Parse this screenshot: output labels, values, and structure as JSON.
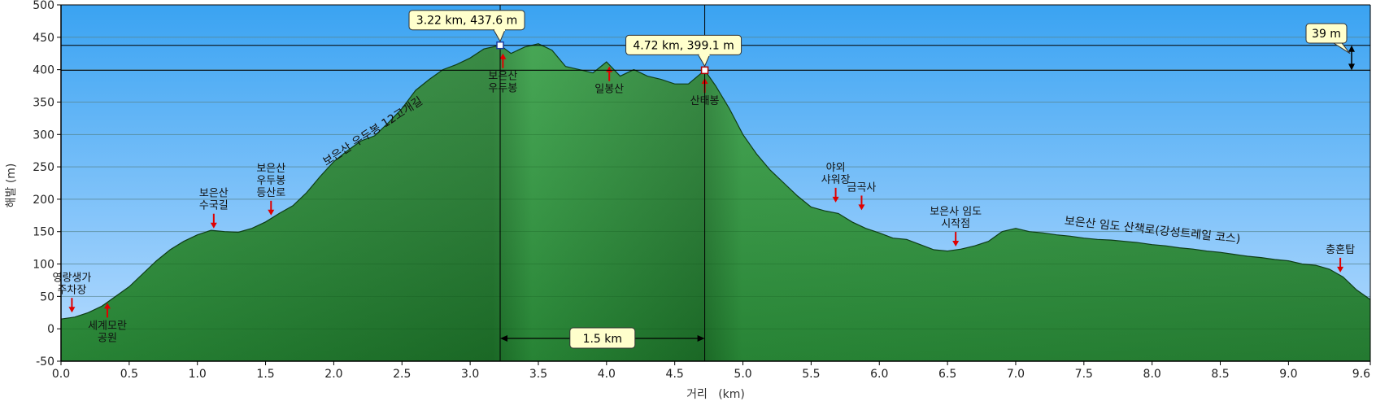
{
  "chart_data": {
    "type": "area",
    "xlabel": "거리   (km)",
    "ylabel": "해발 (m)",
    "xlim": [
      0,
      9.6
    ],
    "ylim": [
      -50,
      500
    ],
    "x_ticks": [
      "0.0",
      "0.5",
      "1.0",
      "1.5",
      "2.0",
      "2.5",
      "3.0",
      "3.5",
      "4.0",
      "4.5",
      "5.0",
      "5.5",
      "6.0",
      "6.5",
      "7.0",
      "7.5",
      "8.0",
      "8.5",
      "9.0",
      "9.6"
    ],
    "y_ticks": [
      "500",
      "450",
      "400",
      "350",
      "300",
      "250",
      "200",
      "150",
      "100",
      "50",
      "0",
      "-50"
    ],
    "grid": true,
    "colors": {
      "sky_top": "#3aa3f2",
      "sky_bottom": "#b8dcff",
      "terrain": "#2e9a3e",
      "terrain_dark": "#1f7a2c",
      "arrow": "#e00000",
      "callout": "#ffffcc"
    },
    "profile": {
      "x": [
        0.0,
        0.1,
        0.2,
        0.3,
        0.4,
        0.5,
        0.6,
        0.7,
        0.8,
        0.9,
        1.0,
        1.1,
        1.2,
        1.3,
        1.4,
        1.5,
        1.6,
        1.7,
        1.8,
        1.9,
        2.0,
        2.1,
        2.2,
        2.3,
        2.4,
        2.5,
        2.6,
        2.7,
        2.8,
        2.9,
        3.0,
        3.1,
        3.22,
        3.3,
        3.4,
        3.5,
        3.6,
        3.7,
        3.8,
        3.9,
        4.0,
        4.1,
        4.2,
        4.3,
        4.4,
        4.5,
        4.6,
        4.72,
        4.8,
        4.9,
        5.0,
        5.1,
        5.2,
        5.3,
        5.4,
        5.5,
        5.6,
        5.7,
        5.8,
        5.9,
        6.0,
        6.1,
        6.2,
        6.3,
        6.4,
        6.5,
        6.6,
        6.7,
        6.8,
        6.9,
        7.0,
        7.1,
        7.2,
        7.3,
        7.4,
        7.5,
        7.6,
        7.7,
        7.8,
        7.9,
        8.0,
        8.1,
        8.2,
        8.3,
        8.4,
        8.5,
        8.6,
        8.7,
        8.8,
        8.9,
        9.0,
        9.1,
        9.2,
        9.3,
        9.4,
        9.5,
        9.6
      ],
      "y": [
        15,
        18,
        25,
        35,
        50,
        65,
        85,
        105,
        122,
        135,
        145,
        152,
        150,
        149,
        155,
        165,
        178,
        190,
        210,
        235,
        258,
        275,
        290,
        298,
        318,
        340,
        368,
        385,
        400,
        408,
        418,
        432,
        437.6,
        425,
        435,
        440,
        430,
        405,
        400,
        395,
        412,
        390,
        400,
        390,
        385,
        378,
        378,
        399.1,
        375,
        340,
        300,
        270,
        245,
        225,
        205,
        188,
        182,
        178,
        165,
        155,
        148,
        140,
        138,
        130,
        122,
        120,
        123,
        128,
        135,
        150,
        155,
        150,
        148,
        145,
        143,
        140,
        138,
        137,
        135,
        133,
        130,
        128,
        125,
        123,
        120,
        118,
        115,
        112,
        110,
        107,
        105,
        100,
        98,
        92,
        80,
        60,
        45
      ]
    },
    "markers": [
      {
        "label": "3.22 km, 437.6 m",
        "x": 3.22,
        "y": 437.6
      },
      {
        "label": "4.72 km, 399.1 m",
        "x": 4.72,
        "y": 399.1
      }
    ],
    "distance_label": "1.5 km",
    "height_diff_label": "39 m",
    "annotations": [
      {
        "lines": [
          "영랑생가",
          "주차장"
        ],
        "x": 0.08,
        "y": 20,
        "dir": "down"
      },
      {
        "lines": [
          "세계모란",
          "공원"
        ],
        "x": 0.34,
        "y": 45,
        "dir": "up"
      },
      {
        "lines": [
          "보은산",
          "수국길"
        ],
        "x": 1.12,
        "y": 150,
        "dir": "down"
      },
      {
        "lines": [
          "보은산",
          "우두봉",
          "등산로"
        ],
        "x": 1.54,
        "y": 170,
        "dir": "down"
      },
      {
        "lines": [
          "보은산",
          "우두봉"
        ],
        "x": 3.24,
        "y": 430,
        "dir": "up"
      },
      {
        "lines": [
          "일봉산"
        ],
        "x": 4.02,
        "y": 410,
        "dir": "up"
      },
      {
        "lines": [
          "산태봉"
        ],
        "x": 4.72,
        "y": 392,
        "dir": "up"
      },
      {
        "lines": [
          "야외",
          "샤워장"
        ],
        "x": 5.68,
        "y": 190,
        "dir": "down"
      },
      {
        "lines": [
          "금곡사"
        ],
        "x": 5.87,
        "y": 178,
        "dir": "down"
      },
      {
        "lines": [
          "보은사 임도",
          "시작점"
        ],
        "x": 6.56,
        "y": 122,
        "dir": "down"
      },
      {
        "lines": [
          "충혼탑"
        ],
        "x": 9.38,
        "y": 82,
        "dir": "down"
      }
    ],
    "route_labels": [
      {
        "text": "보은산 우두봉 12고개길",
        "x": 2.3,
        "y": 300,
        "angle": -33
      },
      {
        "text": "보은산 임도 산책로(강성트레일 코스)",
        "x": 8.0,
        "y": 147,
        "angle": 6
      }
    ]
  }
}
